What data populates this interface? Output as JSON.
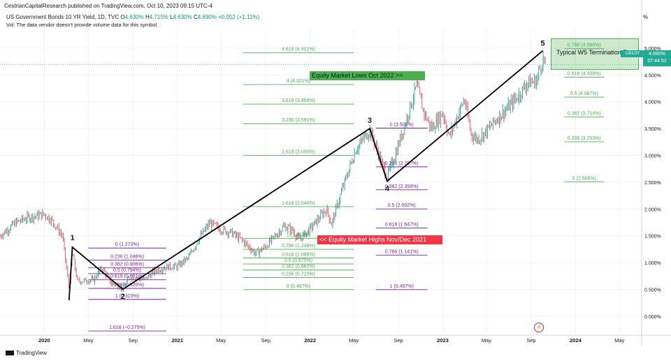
{
  "header": {
    "publish_line": "CestrianCapitalResearch published on TradingView.com, Oct 10, 2023 09:15 UTC-4",
    "symbol_line": "US Government Bonds 10 YR Yield, 1D, TVC",
    "ohlc": {
      "o_label": "O",
      "o": "4.630%",
      "h_label": "H",
      "h": "4.715%",
      "l_label": "L",
      "l": "4.630%",
      "c_label": "C",
      "c": "4.690%",
      "chg": "+0.052 (+1.11%)"
    },
    "vol_note": "Vol: The data vendor doesn't provide volume data for this symbol.",
    "scale_mode": "%"
  },
  "price_badge": {
    "symbol": "US10Y",
    "price": "4.690%",
    "countdown": "07:44:52",
    "color": "#22ab94"
  },
  "footer": {
    "brand": "TradingView"
  },
  "annotations": {
    "equity_lows": "Equity Market Lows Oct 2022 >>",
    "equity_highs": "<< Equity Market Highs Nov/Dec 2021",
    "w5_box": "Typical W5 Termination Zone"
  },
  "colors": {
    "up": "#089981",
    "down": "#f23645",
    "fib_green": "#4caf50",
    "fib_purple": "#7b1fa2",
    "wave": "#000000",
    "grid": "#f0f3fa"
  },
  "chart_data": {
    "type": "line",
    "title": "US Government Bonds 10 YR Yield, 1D, TVC",
    "xlabel": "",
    "ylabel": "",
    "y_axis_side": "right",
    "ylim": [
      -0.3,
      5.35
    ],
    "yticks": [
      0,
      0.5,
      1,
      1.5,
      2,
      2.5,
      3,
      3.5,
      4,
      4.5,
      5
    ],
    "ytick_labels": [
      "0.000%",
      "0.500%",
      "1.000%",
      "1.500%",
      "2.000%",
      "2.500%",
      "3.000%",
      "3.500%",
      "4.000%",
      "4.500%",
      "5.000%"
    ],
    "xlim": [
      "2019-09-01",
      "2024-07-01"
    ],
    "xticks": [
      "2020-01-01",
      "2020-05-01",
      "2020-09-01",
      "2021-01-01",
      "2021-05-01",
      "2021-09-01",
      "2022-01-01",
      "2022-05-01",
      "2022-09-01",
      "2023-01-01",
      "2023-05-01",
      "2023-09-01",
      "2024-01-01",
      "2024-05-01"
    ],
    "xtick_labels": [
      "2020",
      "May",
      "Sep",
      "2021",
      "May",
      "Sep",
      "2022",
      "May",
      "Sep",
      "2023",
      "May",
      "Sep",
      "2024",
      "May"
    ],
    "grid": true,
    "series": [
      {
        "points": [
          [
            "2019-09-01",
            1.5
          ],
          [
            "2019-10-15",
            1.75
          ],
          [
            "2019-11-20",
            1.85
          ],
          [
            "2020-01-01",
            1.9
          ],
          [
            "2020-01-20",
            1.8
          ],
          [
            "2020-02-20",
            1.5
          ],
          [
            "2020-03-09",
            0.5
          ],
          [
            "2020-03-18",
            1.2
          ],
          [
            "2020-04-01",
            0.65
          ],
          [
            "2020-05-15",
            0.68
          ],
          [
            "2020-06-08",
            0.9
          ],
          [
            "2020-07-01",
            0.65
          ],
          [
            "2020-08-04",
            0.52
          ],
          [
            "2020-08-25",
            0.75
          ],
          [
            "2020-10-01",
            0.68
          ],
          [
            "2020-11-01",
            0.85
          ],
          [
            "2020-12-01",
            0.92
          ],
          [
            "2021-01-01",
            0.93
          ],
          [
            "2021-02-01",
            1.1
          ],
          [
            "2021-03-01",
            1.45
          ],
          [
            "2021-03-31",
            1.74
          ],
          [
            "2021-05-01",
            1.62
          ],
          [
            "2021-06-01",
            1.55
          ],
          [
            "2021-07-01",
            1.4
          ],
          [
            "2021-08-04",
            1.17
          ],
          [
            "2021-09-01",
            1.3
          ],
          [
            "2021-10-21",
            1.68
          ],
          [
            "2021-11-15",
            1.6
          ],
          [
            "2021-12-01",
            1.42
          ],
          [
            "2022-01-01",
            1.63
          ],
          [
            "2022-02-15",
            2.0
          ],
          [
            "2022-03-01",
            1.72
          ],
          [
            "2022-04-01",
            2.4
          ],
          [
            "2022-05-06",
            3.1
          ],
          [
            "2022-06-14",
            3.48
          ],
          [
            "2022-07-15",
            2.9
          ],
          [
            "2022-08-01",
            2.6
          ],
          [
            "2022-08-25",
            3.05
          ],
          [
            "2022-09-20",
            3.6
          ],
          [
            "2022-10-21",
            4.3
          ],
          [
            "2022-11-10",
            3.8
          ],
          [
            "2022-12-01",
            3.5
          ],
          [
            "2023-01-01",
            3.8
          ],
          [
            "2023-01-19",
            3.35
          ],
          [
            "2023-03-01",
            4.05
          ],
          [
            "2023-03-20",
            3.4
          ],
          [
            "2023-04-06",
            3.3
          ],
          [
            "2023-05-01",
            3.45
          ],
          [
            "2023-06-01",
            3.7
          ],
          [
            "2023-07-01",
            3.9
          ],
          [
            "2023-08-01",
            4.15
          ],
          [
            "2023-08-21",
            4.35
          ],
          [
            "2023-09-15",
            4.38
          ],
          [
            "2023-10-03",
            4.8
          ],
          [
            "2023-10-10",
            4.69
          ]
        ]
      }
    ],
    "last_value": 4.69,
    "wave_points": [
      {
        "label": "1",
        "x": "2020-03-18",
        "y": 1.29
      },
      {
        "label": "2",
        "x": "2020-08-04",
        "y": 0.505
      },
      {
        "label": "3",
        "x": "2022-06-14",
        "y": 3.5
      },
      {
        "label": "4",
        "x": "2022-08-01",
        "y": 2.52
      },
      {
        "label": "5",
        "x": "2023-10-03",
        "y": 4.95
      }
    ],
    "wave_start": {
      "x": "2020-03-09",
      "y": 0.3
    },
    "fib_sets": [
      {
        "color": "purple",
        "x_start": "2020-05-01",
        "x_end": "2020-12-01",
        "levels": [
          {
            "label": "0 (1.272%)",
            "y": 1.272
          },
          {
            "label": "0.236 (1.046%)",
            "y": 1.046
          },
          {
            "label": "0.382 (0.906%)",
            "y": 0.906
          },
          {
            "label": "0.5 (0.794%)",
            "y": 0.794
          },
          {
            "label": "0.618 (0.681%)",
            "y": 0.681
          },
          {
            "label": "0.786 (0.520%)",
            "y": 0.52
          },
          {
            "label": "1 (0.315%)",
            "y": 0.315
          },
          {
            "label": "1.618 (−0.275%)",
            "y": -0.275
          }
        ]
      },
      {
        "color": "green",
        "x_start": "2021-07-01",
        "x_end": "2022-05-01",
        "levels": [
          {
            "label": "4.618 (4.912%)",
            "y": 4.912
          },
          {
            "label": "4 (4.321%)",
            "y": 4.321
          },
          {
            "label": "3.618 (3.956%)",
            "y": 3.956
          },
          {
            "label": "3.236 (3.591%)",
            "y": 3.591
          },
          {
            "label": "2.618 (3.000%)",
            "y": 3.0
          },
          {
            "label": "1.618 (2.044%)",
            "y": 2.044
          },
          {
            "label": "1 (1.453%)",
            "y": 1.453
          },
          {
            "label": "0.786 (1.249%)",
            "y": 1.249
          },
          {
            "label": "0.618 (1.088%)",
            "y": 1.088
          },
          {
            "label": "0.5 (0.975%)",
            "y": 0.975
          },
          {
            "label": "0.382 (0.862%)",
            "y": 0.862
          },
          {
            "label": "0.236 (0.723%)",
            "y": 0.723
          },
          {
            "label": "0 (0.497%)",
            "y": 0.497
          }
        ]
      },
      {
        "color": "purple",
        "x_start": "2022-07-01",
        "x_end": "2022-11-20",
        "levels": [
          {
            "label": "0 (3.508%)",
            "y": 3.508
          },
          {
            "label": "0.236 (2.787%)",
            "y": 2.787
          },
          {
            "label": "0.382 (2.358%)",
            "y": 2.358
          },
          {
            "label": "0.5 (2.002%)",
            "y": 2.002
          },
          {
            "label": "0.618 (1.647%)",
            "y": 1.647
          },
          {
            "label": "0.786 (1.141%)",
            "y": 1.141
          },
          {
            "label": "1 (0.497%)",
            "y": 0.497
          }
        ]
      },
      {
        "color": "green",
        "x_start": "2023-12-01",
        "x_end": "2024-03-20",
        "levels": [
          {
            "label": "0.786 (4.990%)",
            "y": 4.99
          },
          {
            "label": "0.618 (4.459%)",
            "y": 4.459
          },
          {
            "label": "0.5 (4.087%)",
            "y": 4.087
          },
          {
            "label": "0.382 (3.714%)",
            "y": 3.714
          },
          {
            "label": "0.236 (3.253%)",
            "y": 3.253
          },
          {
            "label": "0 (2.508%)",
            "y": 2.508
          }
        ]
      }
    ]
  }
}
